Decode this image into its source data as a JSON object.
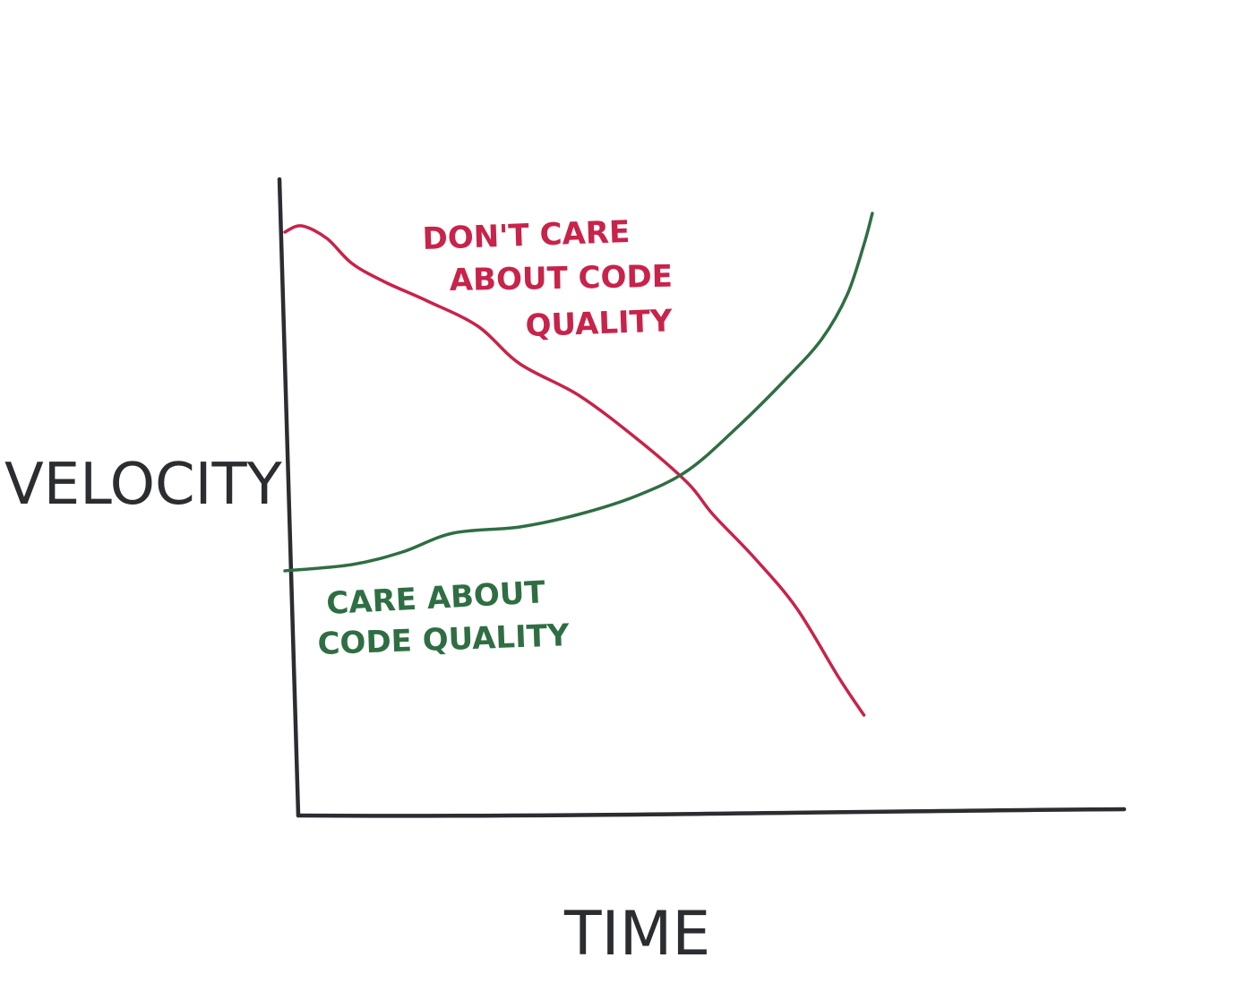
{
  "chart_data": {
    "type": "line",
    "xlabel": "TIME",
    "ylabel": "VELOCITY",
    "xlim": [
      0,
      100
    ],
    "ylim": [
      0,
      100
    ],
    "grid": false,
    "axis_color": "#2b2d30",
    "series": [
      {
        "label_lines": [
          "DON'T CARE",
          "ABOUT CODE",
          "QUALITY"
        ],
        "color": "#c8234a",
        "x": [
          0,
          2,
          5,
          8,
          12,
          17,
          23,
          28,
          35,
          42,
          48,
          51,
          56,
          61,
          66,
          69
        ],
        "y": [
          93,
          94,
          92,
          88,
          85,
          82,
          78,
          72,
          67,
          60,
          53,
          48,
          41,
          33,
          22,
          16
        ]
      },
      {
        "label_lines": [
          "CARE ABOUT",
          "CODE QUALITY"
        ],
        "color": "#2f6e43",
        "x": [
          0,
          8,
          14,
          20,
          28,
          35,
          42,
          48,
          54,
          60,
          64,
          67,
          69,
          70
        ],
        "y": [
          39,
          40,
          42,
          45,
          46,
          48,
          51,
          55,
          62,
          70,
          76,
          83,
          91,
          96
        ]
      }
    ]
  }
}
